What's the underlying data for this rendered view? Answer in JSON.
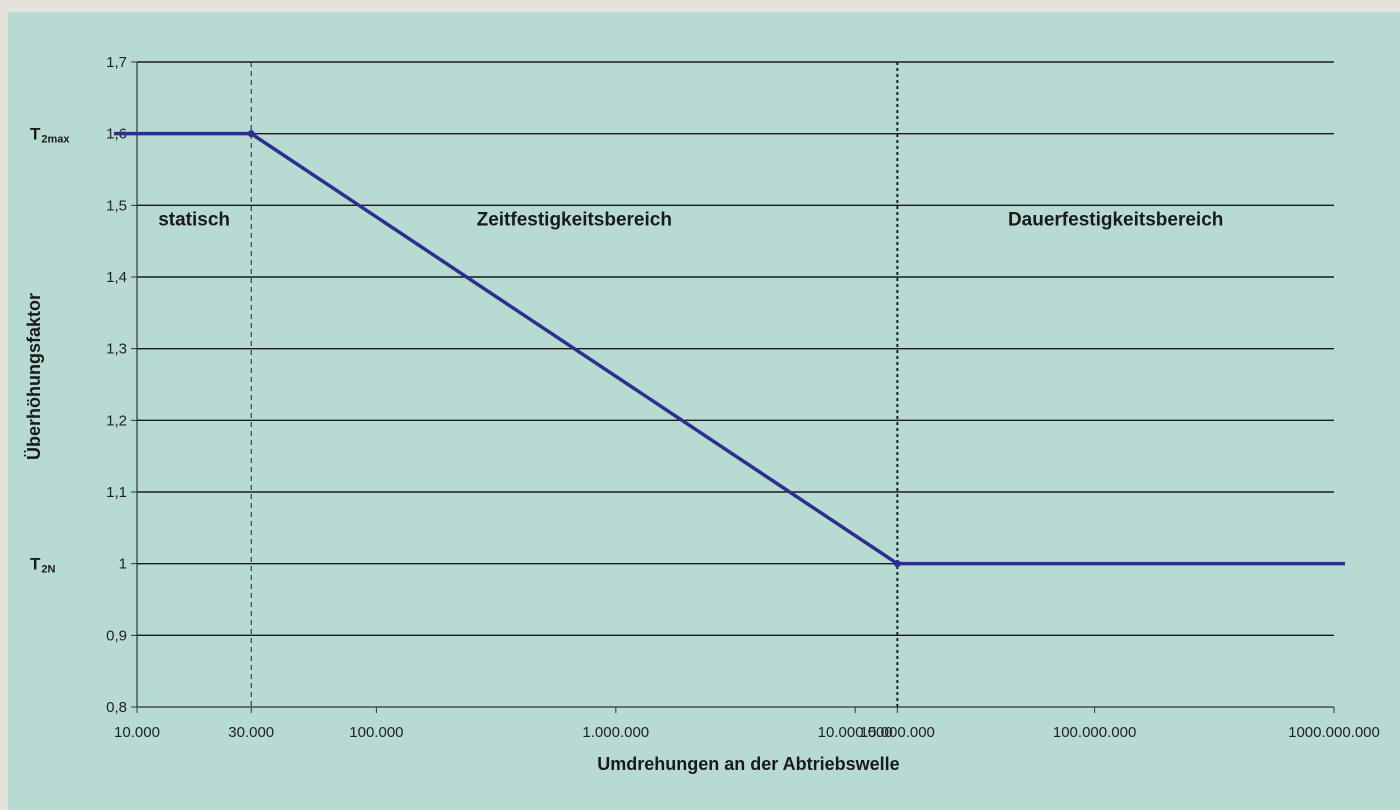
{
  "chart_data": {
    "type": "line",
    "xscale": "log",
    "xlabel": "Umdrehungen an der Abtriebswelle",
    "ylabel": "Überhöhungsfaktor",
    "xlim": [
      10000,
      1000000000
    ],
    "ylim": [
      0.8,
      1.7
    ],
    "xticks": [
      {
        "value": 10000,
        "label": "10.000"
      },
      {
        "value": 30000,
        "label": "30.000"
      },
      {
        "value": 100000,
        "label": "100.000"
      },
      {
        "value": 1000000,
        "label": "1.000.000"
      },
      {
        "value": 10000000,
        "label": "10.000.000"
      },
      {
        "value": 15000000,
        "label": "15.000.000"
      },
      {
        "value": 100000000,
        "label": "100.000.000"
      },
      {
        "value": 1000000000,
        "label": "1000.000.000"
      }
    ],
    "yticks": [
      {
        "value": 0.8,
        "label": "0,8"
      },
      {
        "value": 0.9,
        "label": "0,9"
      },
      {
        "value": 1.0,
        "label": "1"
      },
      {
        "value": 1.1,
        "label": "1,1"
      },
      {
        "value": 1.2,
        "label": "1,2"
      },
      {
        "value": 1.3,
        "label": "1,3"
      },
      {
        "value": 1.4,
        "label": "1,4"
      },
      {
        "value": 1.5,
        "label": "1,5"
      },
      {
        "value": 1.6,
        "label": "1,6"
      },
      {
        "value": 1.7,
        "label": "1,7"
      }
    ],
    "grid": "horizontal",
    "series": [
      {
        "color": "#2e2e8c",
        "points": [
          {
            "x": 10000,
            "y": 1.6
          },
          {
            "x": 30000,
            "y": 1.6
          },
          {
            "x": 15000000,
            "y": 1.0
          },
          {
            "x": 1000000000,
            "y": 1.0
          }
        ]
      }
    ],
    "vlines": [
      {
        "x": 30000,
        "style": "dashed"
      },
      {
        "x": 15000000,
        "style": "dotted"
      }
    ],
    "regions": [
      {
        "label": "statisch",
        "x_from": 10000,
        "x_to": 30000,
        "y": 1.48
      },
      {
        "label": "Zeitfestigkeitsbereich",
        "x_from": 30000,
        "x_to": 15000000,
        "y": 1.48
      },
      {
        "label": "Dauerfestigkeitsbereich",
        "x_from": 15000000,
        "x_to": 1000000000,
        "y": 1.48
      }
    ],
    "ylevel_labels": [
      {
        "y": 1.6,
        "main": "T",
        "sub": "2max"
      },
      {
        "y": 1.0,
        "main": "T",
        "sub": "2N"
      }
    ],
    "colors": {
      "background": "#b7dbd2",
      "grid": "#1a1a1a",
      "line": "#2e2e8c"
    }
  }
}
